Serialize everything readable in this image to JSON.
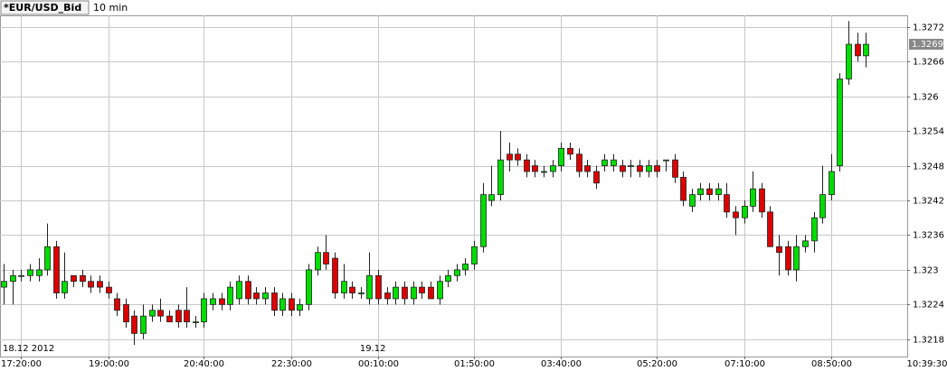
{
  "chart_data": {
    "type": "candlestick",
    "title": "*EUR/USD_Bid",
    "subtitle": "10 min",
    "current_time": "10:39:30",
    "up_color": "#00dd00",
    "down_color": "#dd0000",
    "grid": true,
    "ylim": [
      1.3215,
      1.3274
    ],
    "yticks": [
      1.3218,
      1.3224,
      1.323,
      1.3236,
      1.3242,
      1.3248,
      1.3254,
      1.326,
      1.3266,
      1.3272
    ],
    "categories": [
      null,
      null,
      "17:20:00",
      null,
      null,
      null,
      null,
      null,
      null,
      null,
      null,
      null,
      "19:00:00",
      null,
      null,
      null,
      null,
      null,
      null,
      null,
      null,
      null,
      null,
      "20:40:00",
      null,
      null,
      null,
      null,
      null,
      null,
      null,
      null,
      null,
      "22:30:00",
      null,
      null,
      null,
      null,
      null,
      null,
      null,
      null,
      null,
      "00:10:00",
      null,
      null,
      null,
      null,
      null,
      null,
      null,
      null,
      null,
      null,
      "01:50:00",
      null,
      null,
      null,
      null,
      null,
      null,
      null,
      null,
      null,
      "03:40:00",
      null,
      null,
      null,
      null,
      null,
      null,
      null,
      null,
      null,
      null,
      "05:20:00",
      null,
      null,
      null,
      null,
      null,
      null,
      null,
      null,
      null,
      "07:10:00",
      null,
      null,
      null,
      null,
      null,
      null,
      null,
      null,
      null,
      "08:50:00",
      null,
      null,
      null,
      null
    ],
    "dates": [
      "18.12 2012",
      null,
      null,
      null,
      null,
      null,
      null,
      null,
      null,
      null,
      null,
      null,
      null,
      null,
      null,
      null,
      null,
      null,
      null,
      null,
      null,
      null,
      null,
      null,
      null,
      null,
      null,
      null,
      null,
      null,
      null,
      null,
      null,
      null,
      null,
      null,
      null,
      null,
      null,
      null,
      null,
      "19.12",
      null,
      null,
      null,
      null,
      null,
      null,
      null,
      null,
      null,
      null,
      null,
      null,
      null,
      null,
      null,
      null,
      null,
      null,
      null,
      null,
      null,
      null,
      null,
      null,
      null,
      null,
      null,
      null,
      null,
      null,
      null,
      null,
      null,
      null,
      null,
      null,
      null,
      null,
      null,
      null,
      null,
      null,
      null,
      null,
      null,
      null,
      null,
      null,
      null,
      null,
      null,
      null,
      null,
      null,
      null,
      null,
      null,
      null
    ],
    "open": [
      1.3227,
      1.3228,
      1.3229,
      1.3229,
      1.3229,
      1.323,
      1.3234,
      1.3226,
      1.3229,
      1.3229,
      1.3228,
      1.3228,
      1.3227,
      1.3225,
      1.3224,
      1.3222,
      1.3219,
      1.3222,
      1.3223,
      1.3222,
      1.3223,
      1.3223,
      1.3221,
      1.3221,
      1.3224,
      1.3225,
      1.3224,
      1.3225,
      1.3228,
      1.3226,
      1.3225,
      1.3226,
      1.3223,
      1.3225,
      1.3223,
      1.3224,
      1.323,
      1.3233,
      1.3232,
      1.3226,
      1.3227,
      1.3226,
      1.3225,
      1.3229,
      1.3226,
      1.3225,
      1.3227,
      1.3225,
      1.3227,
      1.3227,
      1.3225,
      1.3228,
      1.3229,
      1.323,
      1.3231,
      1.3234,
      1.3242,
      1.3243,
      1.325,
      1.325,
      1.3249,
      1.3248,
      1.3247,
      1.3247,
      1.3248,
      1.3251,
      1.325,
      1.3248,
      1.3247,
      1.3248,
      1.3248,
      1.3248,
      1.3248,
      1.3248,
      1.3247,
      1.3248,
      1.3249,
      1.3249,
      1.3246,
      1.3241,
      1.3243,
      1.3244,
      1.3243,
      1.3243,
      1.324,
      1.3239,
      1.3241,
      1.3244,
      1.324,
      1.3234,
      1.3234,
      1.323,
      1.3234,
      1.3235,
      1.3239,
      1.3243,
      1.3248,
      1.3263,
      1.3269,
      1.3267
    ],
    "high": [
      1.3231,
      1.323,
      1.323,
      1.3231,
      1.3232,
      1.3238,
      1.3235,
      1.3233,
      1.3229,
      1.323,
      1.3229,
      1.3229,
      1.3228,
      1.3226,
      1.3225,
      1.3223,
      1.3224,
      1.3224,
      1.3225,
      1.3223,
      1.3224,
      1.3227,
      1.3222,
      1.3226,
      1.3226,
      1.3226,
      1.3228,
      1.3229,
      1.3229,
      1.3227,
      1.3227,
      1.3227,
      1.3226,
      1.3226,
      1.3225,
      1.3231,
      1.3234,
      1.3236,
      1.3233,
      1.3231,
      1.3228,
      1.3227,
      1.3233,
      1.323,
      1.3227,
      1.3228,
      1.3228,
      1.3228,
      1.3228,
      1.3228,
      1.3229,
      1.323,
      1.3231,
      1.3232,
      1.3235,
      1.3245,
      1.3248,
      1.3254,
      1.3252,
      1.3251,
      1.325,
      1.3249,
      1.3248,
      1.3249,
      1.3252,
      1.3252,
      1.3251,
      1.3249,
      1.3248,
      1.325,
      1.325,
      1.3249,
      1.3249,
      1.3249,
      1.3249,
      1.3249,
      1.3249,
      1.325,
      1.3247,
      1.3244,
      1.3245,
      1.3245,
      1.3245,
      1.3245,
      1.3241,
      1.3242,
      1.3247,
      1.3245,
      1.3241,
      1.3236,
      1.3235,
      1.3236,
      1.3236,
      1.324,
      1.3248,
      1.325,
      1.3264,
      1.3273,
      1.3271,
      1.3271
    ],
    "low": [
      1.3224,
      1.3224,
      1.3228,
      1.3228,
      1.3228,
      1.3229,
      1.3225,
      1.3225,
      1.3227,
      1.3227,
      1.3226,
      1.3226,
      1.3225,
      1.3222,
      1.322,
      1.3217,
      1.3218,
      1.3221,
      1.3221,
      1.3221,
      1.322,
      1.322,
      1.322,
      1.322,
      1.3223,
      1.3223,
      1.3223,
      1.3224,
      1.3224,
      1.3224,
      1.3224,
      1.3222,
      1.3222,
      1.3222,
      1.3222,
      1.3223,
      1.3229,
      1.323,
      1.3225,
      1.3225,
      1.3225,
      1.3225,
      1.3224,
      1.3224,
      1.3224,
      1.3224,
      1.3224,
      1.3224,
      1.3225,
      1.3225,
      1.3224,
      1.3227,
      1.3228,
      1.3229,
      1.323,
      1.3233,
      1.3241,
      1.3242,
      1.3247,
      1.3248,
      1.3246,
      1.3246,
      1.3246,
      1.3246,
      1.3247,
      1.3249,
      1.3246,
      1.3246,
      1.3244,
      1.3247,
      1.3247,
      1.3246,
      1.3246,
      1.3246,
      1.3246,
      1.3246,
      1.3247,
      1.3245,
      1.3241,
      1.324,
      1.3242,
      1.3242,
      1.3242,
      1.3239,
      1.3236,
      1.3238,
      1.324,
      1.3239,
      1.3234,
      1.3229,
      1.3229,
      1.3228,
      1.3233,
      1.3233,
      1.3238,
      1.3242,
      1.3247,
      1.3262,
      1.3266,
      1.3265
    ],
    "close": [
      1.3228,
      1.3229,
      1.3229,
      1.323,
      1.323,
      1.3234,
      1.3226,
      1.3228,
      1.3228,
      1.3228,
      1.3227,
      1.3227,
      1.3226,
      1.3223,
      1.3221,
      1.3219,
      1.3222,
      1.3223,
      1.3222,
      1.3221,
      1.3221,
      1.3221,
      1.3221,
      1.3225,
      1.3225,
      1.3224,
      1.3227,
      1.3228,
      1.3225,
      1.3225,
      1.3226,
      1.3223,
      1.3225,
      1.3223,
      1.3224,
      1.323,
      1.3233,
      1.3231,
      1.3226,
      1.3228,
      1.3226,
      1.3226,
      1.3229,
      1.3225,
      1.3225,
      1.3227,
      1.3225,
      1.3227,
      1.3226,
      1.3225,
      1.3228,
      1.3229,
      1.323,
      1.3231,
      1.3234,
      1.3243,
      1.3243,
      1.3249,
      1.3249,
      1.3249,
      1.3247,
      1.3247,
      1.3247,
      1.3248,
      1.3251,
      1.325,
      1.3247,
      1.3247,
      1.3245,
      1.3249,
      1.3249,
      1.3247,
      1.3248,
      1.3247,
      1.3248,
      1.3247,
      1.3249,
      1.3246,
      1.3242,
      1.3243,
      1.3244,
      1.3243,
      1.3244,
      1.324,
      1.3239,
      1.3241,
      1.3244,
      1.324,
      1.3234,
      1.3233,
      1.323,
      1.3234,
      1.3235,
      1.3239,
      1.3243,
      1.3247,
      1.3263,
      1.3269,
      1.3267,
      1.3269
    ]
  }
}
